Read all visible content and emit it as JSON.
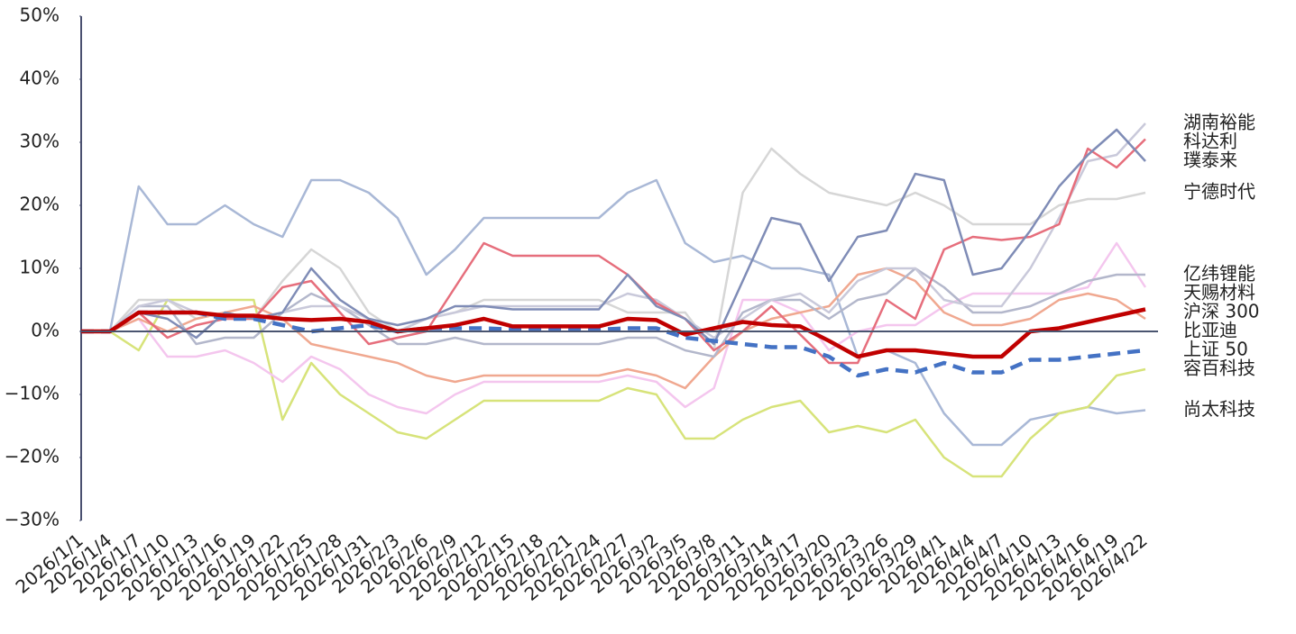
{
  "chart_data": {
    "type": "line",
    "categories": [
      "2026/1/1",
      "2026/1/4",
      "2026/1/7",
      "2026/1/10",
      "2026/1/13",
      "2026/1/16",
      "2026/1/19",
      "2026/1/22",
      "2026/1/25",
      "2026/1/28",
      "2026/1/31",
      "2026/2/3",
      "2026/2/6",
      "2026/2/9",
      "2026/2/12",
      "2026/2/15",
      "2026/2/18",
      "2026/2/21",
      "2026/2/24",
      "2026/2/27",
      "2026/3/2",
      "2026/3/5",
      "2026/3/8",
      "2026/3/11",
      "2026/3/14",
      "2026/3/17",
      "2026/3/20",
      "2026/3/23",
      "2026/3/26",
      "2026/3/29",
      "2026/4/1",
      "2026/4/4",
      "2026/4/7",
      "2026/4/10",
      "2026/4/13",
      "2026/4/16",
      "2026/4/19",
      "2026/4/22"
    ],
    "ylim": [
      -30,
      50
    ],
    "yticks": [
      {
        "value": -30,
        "label": "−30%"
      },
      {
        "value": -20,
        "label": "−20%"
      },
      {
        "value": -10,
        "label": "−10%"
      },
      {
        "value": 0,
        "label": "0%"
      },
      {
        "value": 10,
        "label": "10%"
      },
      {
        "value": 20,
        "label": "20%"
      },
      {
        "value": 30,
        "label": "30%"
      },
      {
        "value": 40,
        "label": "40%"
      },
      {
        "value": 50,
        "label": "50%"
      }
    ],
    "series": [
      {
        "name": "尚太科技",
        "color": "#a9b8d6",
        "values": [
          0,
          0,
          23,
          17,
          17,
          20,
          17,
          15,
          24,
          24,
          22,
          18,
          9,
          13,
          18,
          18,
          18,
          18,
          18,
          22,
          24,
          14,
          11,
          12,
          10,
          10,
          9,
          -4,
          -3,
          -5,
          -13,
          -18,
          -18,
          -14,
          -13,
          -12,
          -13,
          -12.5
        ]
      },
      {
        "name": "容百科技",
        "color": "#d7e37a",
        "values": [
          0,
          0,
          -3,
          5,
          5,
          5,
          5,
          -14,
          -5,
          -10,
          -13,
          -16,
          -17,
          -14,
          -11,
          -11,
          -11,
          -11,
          -11,
          -9,
          -10,
          -17,
          -17,
          -14,
          -12,
          -11,
          -16,
          -15,
          -16,
          -14,
          -20,
          -23,
          -23,
          -17,
          -13,
          -12,
          -7,
          -6
        ]
      },
      {
        "name": "宁德时代",
        "color": "#d6d6d6",
        "values": [
          0,
          0,
          5,
          5,
          2,
          3,
          2,
          8,
          13,
          10,
          3,
          0,
          2,
          3,
          5,
          5,
          5,
          5,
          5,
          3,
          3,
          3,
          -3,
          22,
          29,
          25,
          22,
          21,
          20,
          22,
          20,
          17,
          17,
          17,
          20,
          21,
          21,
          22
        ]
      },
      {
        "name": "天赐材料",
        "color": "#f4c6ee",
        "values": [
          0,
          0,
          2,
          -4,
          -4,
          -3,
          -5,
          -8,
          -4,
          -6,
          -10,
          -12,
          -13,
          -10,
          -8,
          -8,
          -8,
          -8,
          -8,
          -7,
          -8,
          -12,
          -9,
          5,
          5,
          3,
          -3,
          0,
          1,
          1,
          4,
          6,
          6,
          6,
          6,
          7,
          14,
          7
        ]
      },
      {
        "name": "比亚迪",
        "color": "#f0a890",
        "values": [
          0,
          0,
          2,
          0,
          2,
          3,
          4,
          2,
          -2,
          -3,
          -4,
          -5,
          -7,
          -8,
          -7,
          -7,
          -7,
          -7,
          -7,
          -6,
          -7,
          -9,
          -4,
          0,
          2,
          3,
          4,
          9,
          10,
          8,
          3,
          1,
          1,
          2,
          5,
          6,
          5,
          2
        ]
      },
      {
        "name": "亿纬锂能",
        "color": "#b3b7cb",
        "values": [
          0,
          0,
          4,
          4,
          -2,
          -1,
          -1,
          3,
          6,
          4,
          1,
          -2,
          -2,
          -1,
          -2,
          -2,
          -2,
          -2,
          -2,
          -1,
          -1,
          -3,
          -4,
          3,
          5,
          5,
          2,
          5,
          6,
          10,
          7,
          3,
          3,
          4,
          6,
          8,
          9,
          9
        ]
      },
      {
        "name": "湖南裕能",
        "color": "#c9c9da",
        "values": [
          0,
          0,
          4,
          5,
          3,
          2,
          2,
          3,
          4,
          4,
          2,
          0,
          2,
          3,
          4,
          4,
          4,
          4,
          4,
          6,
          5,
          2,
          -1,
          2,
          5,
          6,
          3,
          8,
          10,
          10,
          5,
          4,
          4,
          10,
          18,
          27,
          28,
          33
        ]
      },
      {
        "name": "科达利",
        "color": "#e66e7c",
        "values": [
          0,
          0,
          3,
          -1,
          1,
          2,
          2,
          7,
          8,
          3,
          -2,
          -1,
          0,
          7,
          14,
          12,
          12,
          12,
          12,
          9,
          4.5,
          2,
          -3,
          0,
          4,
          -0.5,
          -5,
          -5,
          5,
          2,
          13,
          15,
          14.5,
          15,
          17,
          29,
          26,
          30.5
        ]
      },
      {
        "name": "璞泰来",
        "color": "#7f8cb6",
        "values": [
          0,
          0,
          3,
          2,
          -1,
          3,
          2,
          3,
          10,
          5,
          2,
          1,
          2,
          4,
          4,
          3.5,
          3.5,
          3.5,
          3.5,
          9,
          4,
          2,
          -2,
          8,
          18,
          17,
          8,
          15,
          16,
          25,
          24,
          9,
          10,
          16,
          23,
          28,
          32,
          27
        ]
      },
      {
        "name": "上证 50",
        "color": "#4472c4",
        "dashed": true,
        "values": [
          0,
          0,
          3,
          3,
          3,
          2,
          2,
          1,
          0,
          0.5,
          1,
          0,
          0.5,
          0.5,
          0.5,
          0.3,
          0.3,
          0.3,
          0.3,
          0.5,
          0.5,
          -1,
          -1.5,
          -2,
          -2.5,
          -2.5,
          -4,
          -7,
          -6,
          -6.5,
          -5,
          -6.5,
          -6.5,
          -4.5,
          -4.5,
          -4,
          -3.5,
          -3
        ]
      },
      {
        "name": "沪深 300",
        "color": "#c00000",
        "bold": true,
        "values": [
          0,
          0,
          3,
          3,
          3,
          2.5,
          2.5,
          2,
          1.8,
          2,
          1.5,
          0,
          0.5,
          1,
          2,
          0.8,
          0.8,
          0.8,
          0.8,
          2,
          1.8,
          -0.5,
          0.5,
          1.5,
          1,
          0.8,
          -1.5,
          -4,
          -3,
          -3,
          -3.5,
          -4,
          -4,
          0,
          0.5,
          1.5,
          2.5,
          3.5
        ]
      }
    ]
  }
}
